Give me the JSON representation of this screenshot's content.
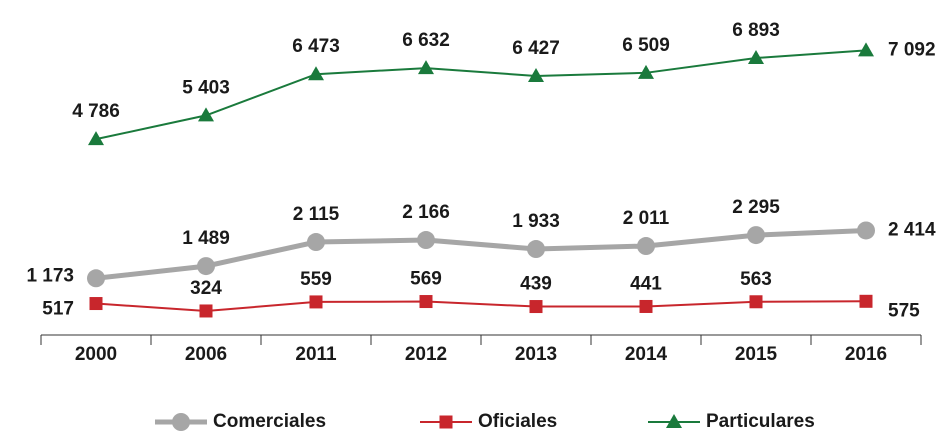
{
  "chart_data": {
    "type": "line",
    "categories": [
      "2000",
      "2006",
      "2011",
      "2012",
      "2013",
      "2014",
      "2015",
      "2016"
    ],
    "series": [
      {
        "name": "Comerciales",
        "color": "#a6a6a6",
        "values": [
          1173,
          1489,
          2115,
          2166,
          1933,
          2011,
          2295,
          2414
        ],
        "value_labels": [
          "1 173",
          "1 489",
          "2 115",
          "2 166",
          "1 933",
          "2 011",
          "2 295",
          "2 414"
        ]
      },
      {
        "name": "Oficiales",
        "color": "#c8262c",
        "values": [
          517,
          324,
          559,
          569,
          439,
          441,
          563,
          575
        ],
        "value_labels": [
          "517",
          "324",
          "559",
          "569",
          "439",
          "441",
          "563",
          "575"
        ]
      },
      {
        "name": "Particulares",
        "color": "#1a7a3c",
        "values": [
          4786,
          5403,
          6473,
          6632,
          6427,
          6509,
          6893,
          7092
        ],
        "value_labels": [
          "4 786",
          "5 403",
          "6 473",
          "6 632",
          "6 427",
          "6 509",
          "6 893",
          "7 092"
        ]
      }
    ],
    "ylim": [
      -300,
      8400
    ],
    "grid": false,
    "legend": "bottom"
  }
}
